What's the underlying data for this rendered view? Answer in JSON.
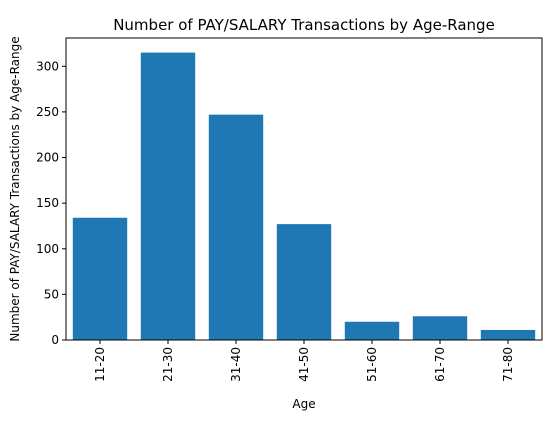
{
  "chart_data": {
    "type": "bar",
    "title": "Number of PAY/SALARY Transactions by Age-Range",
    "xlabel": "Age",
    "ylabel": "Number of PAY/SALARY Transactions by Age-Range",
    "categories": [
      "11-20",
      "21-30",
      "31-40",
      "41-50",
      "51-60",
      "61-70",
      "71-80"
    ],
    "values": [
      134,
      315,
      247,
      127,
      20,
      26,
      11
    ],
    "ylim": [
      0,
      331
    ],
    "yticks": [
      0,
      50,
      100,
      150,
      200,
      250,
      300
    ],
    "bar_color": "#1f77b4",
    "grid": false,
    "legend": "none"
  }
}
